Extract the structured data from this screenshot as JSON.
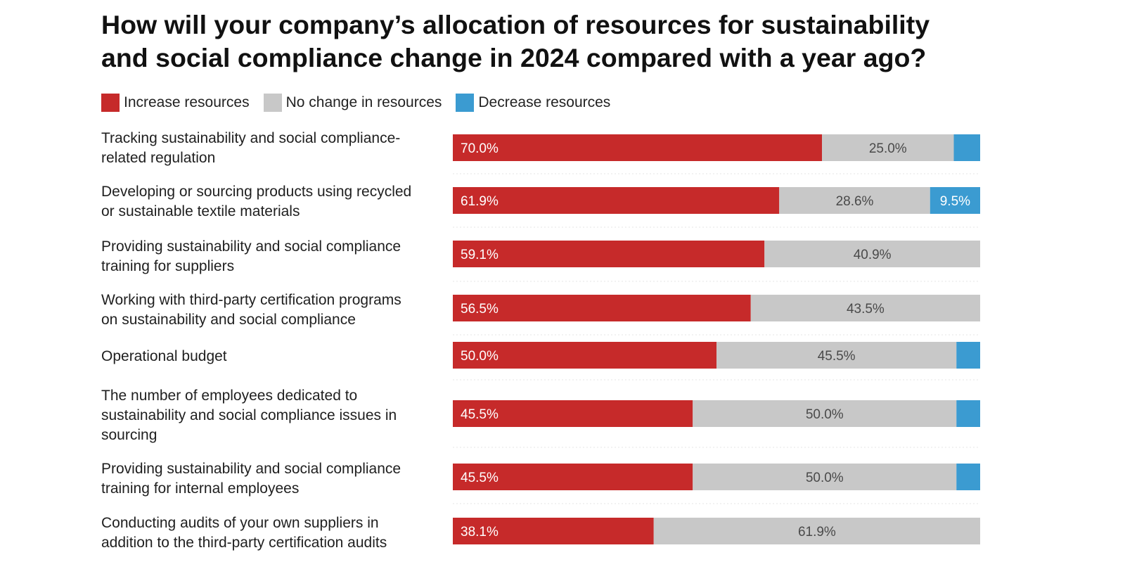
{
  "title_lines": [
    "How will your company’s allocation of resources for sustainability",
    "and social compliance change in 2024 compared with a year ago?"
  ],
  "legend": [
    {
      "label": "Increase resources",
      "color": "#c62a2a"
    },
    {
      "label": "No change in resources",
      "color": "#c8c8c8"
    },
    {
      "label": "Decrease resources",
      "color": "#3b9bd1"
    }
  ],
  "chart_data": {
    "type": "bar",
    "orientation": "horizontal",
    "stacked": true,
    "normalized_to": 100,
    "title": "How will your company’s allocation of resources for sustainability and social compliance change in 2024 compared with a year ago?",
    "legend_position": "top-left",
    "grid": false,
    "categories": [
      [
        "Tracking sustainability and social compliance-",
        "related regulation"
      ],
      [
        "Developing or sourcing products using recycled",
        "or sustainable textile materials"
      ],
      [
        "Providing sustainability and social compliance",
        "training for suppliers"
      ],
      [
        "Working with third-party certification programs",
        "on sustainability and social compliance"
      ],
      [
        "Operational budget"
      ],
      [
        "The number of employees dedicated to",
        "sustainability and social compliance issues in",
        "sourcing"
      ],
      [
        "Providing sustainability and social compliance",
        "training for internal employees"
      ],
      [
        "Conducting audits of your own suppliers in",
        "addition to the third-party certification audits"
      ]
    ],
    "series": [
      {
        "name": "Increase resources",
        "color": "#c62a2a",
        "values": [
          70.0,
          61.9,
          59.1,
          56.5,
          50.0,
          45.5,
          45.5,
          38.1
        ],
        "labels": [
          "70.0%",
          "61.9%",
          "59.1%",
          "56.5%",
          "50.0%",
          "45.5%",
          "45.5%",
          "38.1%"
        ]
      },
      {
        "name": "No change in resources",
        "color": "#c8c8c8",
        "values": [
          25.0,
          28.6,
          40.9,
          43.5,
          45.5,
          50.0,
          50.0,
          61.9
        ],
        "labels": [
          "25.0%",
          "28.6%",
          "40.9%",
          "43.5%",
          "45.5%",
          "50.0%",
          "50.0%",
          "61.9%"
        ]
      },
      {
        "name": "Decrease resources",
        "color": "#3b9bd1",
        "values": [
          5.0,
          9.5,
          0,
          0,
          4.5,
          4.5,
          4.5,
          0
        ],
        "labels": [
          "",
          "9.5%",
          "",
          "",
          "",
          "",
          "",
          ""
        ]
      }
    ]
  }
}
